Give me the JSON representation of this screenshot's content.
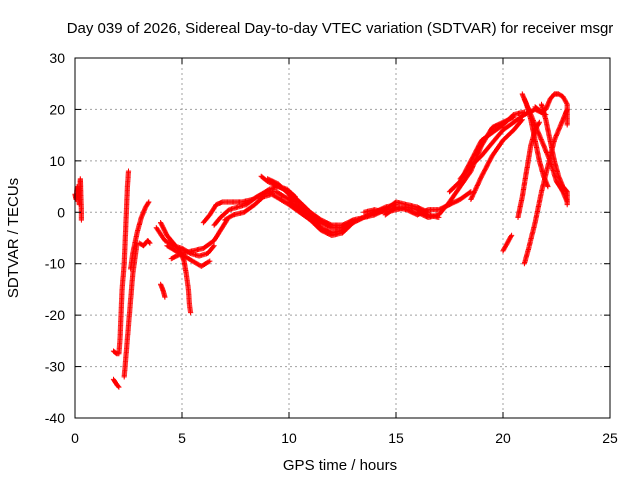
{
  "chart_data": {
    "type": "scatter",
    "title": "Day 039 of 2026, Sidereal Day-to-day VTEC variation (SDTVAR) for receiver msgr",
    "xlabel": "GPS time / hours",
    "ylabel": "SDTVAR / TECUs",
    "xlim": [
      0,
      25
    ],
    "ylim": [
      -40,
      30
    ],
    "xticks": [
      0,
      5,
      10,
      15,
      20,
      25
    ],
    "xtick_labels": [
      "0",
      "5",
      "10",
      "15",
      "20",
      "25"
    ],
    "yticks": [
      -40,
      -30,
      -20,
      -10,
      0,
      10,
      20,
      30
    ],
    "ytick_labels": [
      "-40",
      "-30",
      "-20",
      "-10",
      "0",
      "10",
      "20",
      "30"
    ],
    "grid": true,
    "marker": "plus",
    "color": "#ff0000",
    "tracks": [
      [
        [
          0.0,
          3.5
        ],
        [
          0.05,
          2.5
        ],
        [
          0.1,
          5.0
        ],
        [
          0.15,
          4.0
        ],
        [
          0.2,
          1.5
        ],
        [
          0.25,
          6.5
        ],
        [
          0.3,
          0.0
        ],
        [
          0.3,
          -1.5
        ]
      ],
      [
        [
          1.8,
          -32.5
        ],
        [
          1.95,
          -33.5
        ],
        [
          2.05,
          -34.0
        ]
      ],
      [
        [
          1.8,
          -27.0
        ],
        [
          1.95,
          -27.5
        ],
        [
          2.05,
          -27.5
        ],
        [
          2.1,
          -25.0
        ],
        [
          2.15,
          -20.0
        ],
        [
          2.2,
          -15.0
        ],
        [
          2.3,
          -10.0
        ],
        [
          2.35,
          -5.0
        ],
        [
          2.4,
          0.0
        ],
        [
          2.45,
          5.0
        ],
        [
          2.5,
          8.0
        ]
      ],
      [
        [
          2.3,
          -32.0
        ],
        [
          2.4,
          -27.0
        ],
        [
          2.5,
          -22.0
        ],
        [
          2.6,
          -17.0
        ],
        [
          2.7,
          -12.0
        ],
        [
          2.8,
          -9.0
        ],
        [
          2.9,
          -6.0
        ]
      ],
      [
        [
          2.6,
          -11.0
        ],
        [
          2.7,
          -8.0
        ],
        [
          2.9,
          -4.0
        ],
        [
          3.1,
          -1.0
        ],
        [
          3.3,
          1.0
        ],
        [
          3.45,
          2.0
        ]
      ],
      [
        [
          3.0,
          -6.0
        ],
        [
          3.2,
          -6.5
        ],
        [
          3.4,
          -5.5
        ],
        [
          3.5,
          -6.0
        ]
      ],
      [
        [
          4.0,
          -14.0
        ],
        [
          4.1,
          -15.0
        ],
        [
          4.2,
          -16.5
        ]
      ],
      [
        [
          4.0,
          -2.0
        ],
        [
          4.3,
          -4.5
        ],
        [
          4.6,
          -6.0
        ],
        [
          4.9,
          -7.5
        ],
        [
          5.1,
          -9.5
        ],
        [
          5.2,
          -12.0
        ],
        [
          5.3,
          -15.0
        ],
        [
          5.35,
          -18.0
        ],
        [
          5.4,
          -19.5
        ]
      ],
      [
        [
          3.8,
          -3.0
        ],
        [
          4.2,
          -5.5
        ],
        [
          4.6,
          -6.5
        ],
        [
          5.0,
          -7.0
        ],
        [
          5.4,
          -8.0
        ],
        [
          5.8,
          -8.5
        ],
        [
          6.2,
          -8.0
        ],
        [
          6.5,
          -6.5
        ]
      ],
      [
        [
          4.3,
          -6.5
        ],
        [
          4.7,
          -7.5
        ],
        [
          5.1,
          -8.5
        ],
        [
          5.5,
          -9.5
        ],
        [
          5.9,
          -10.5
        ],
        [
          6.3,
          -9.5
        ]
      ],
      [
        [
          4.5,
          -9.0
        ],
        [
          5.0,
          -8.0
        ],
        [
          5.5,
          -7.5
        ],
        [
          6.0,
          -7.0
        ],
        [
          6.5,
          -5.5
        ],
        [
          6.8,
          -3.5
        ],
        [
          7.1,
          -1.5
        ]
      ],
      [
        [
          6.0,
          -2.0
        ],
        [
          6.3,
          -0.5
        ],
        [
          6.6,
          1.5
        ],
        [
          6.9,
          2.0
        ],
        [
          7.3,
          2.0
        ],
        [
          7.8,
          2.0
        ],
        [
          8.3,
          2.5
        ],
        [
          8.7,
          3.5
        ],
        [
          9.1,
          4.5
        ],
        [
          9.5,
          5.0
        ],
        [
          9.9,
          4.5
        ],
        [
          10.3,
          3.0
        ]
      ],
      [
        [
          6.5,
          -2.5
        ],
        [
          6.8,
          -1.0
        ],
        [
          7.2,
          0.5
        ],
        [
          7.6,
          1.0
        ],
        [
          8.0,
          1.5
        ],
        [
          8.5,
          3.0
        ],
        [
          9.0,
          4.0
        ],
        [
          9.4,
          4.0
        ],
        [
          9.8,
          3.0
        ],
        [
          10.2,
          2.0
        ]
      ],
      [
        [
          7.0,
          -1.5
        ],
        [
          7.4,
          -0.5
        ],
        [
          7.9,
          0.0
        ],
        [
          8.4,
          1.5
        ],
        [
          8.8,
          3.0
        ],
        [
          9.2,
          3.5
        ],
        [
          9.6,
          2.5
        ],
        [
          10.0,
          1.5
        ],
        [
          10.5,
          0.0
        ],
        [
          11.0,
          -1.5
        ],
        [
          11.5,
          -3.5
        ],
        [
          12.0,
          -4.5
        ],
        [
          12.5,
          -4.0
        ],
        [
          13.0,
          -2.0
        ]
      ],
      [
        [
          8.7,
          7.0
        ],
        [
          9.0,
          6.0
        ],
        [
          9.5,
          5.0
        ],
        [
          10.0,
          4.0
        ],
        [
          10.5,
          2.0
        ],
        [
          11.0,
          0.0
        ],
        [
          11.5,
          -1.5
        ],
        [
          12.0,
          -2.5
        ],
        [
          12.5,
          -2.5
        ],
        [
          13.0,
          -1.5
        ]
      ],
      [
        [
          9.0,
          6.5
        ],
        [
          9.5,
          5.5
        ],
        [
          10.0,
          3.5
        ],
        [
          10.5,
          1.0
        ],
        [
          11.0,
          -1.0
        ],
        [
          11.5,
          -3.0
        ],
        [
          12.0,
          -4.0
        ],
        [
          12.5,
          -3.5
        ],
        [
          13.0,
          -2.0
        ],
        [
          13.5,
          -1.0
        ],
        [
          14.0,
          0.0
        ],
        [
          14.5,
          1.0
        ],
        [
          15.0,
          1.5
        ]
      ],
      [
        [
          10.0,
          2.0
        ],
        [
          10.5,
          0.5
        ],
        [
          11.0,
          -0.5
        ],
        [
          11.5,
          -2.0
        ],
        [
          12.0,
          -3.0
        ],
        [
          12.5,
          -3.0
        ],
        [
          13.0,
          -1.5
        ],
        [
          13.5,
          -1.0
        ],
        [
          14.0,
          -0.5
        ],
        [
          14.5,
          0.5
        ],
        [
          15.0,
          2.0
        ],
        [
          15.5,
          1.5
        ],
        [
          16.0,
          1.0
        ],
        [
          16.5,
          0.0
        ]
      ],
      [
        [
          13.5,
          0.0
        ],
        [
          14.0,
          0.5
        ],
        [
          14.5,
          0.0
        ],
        [
          15.0,
          0.5
        ],
        [
          15.5,
          1.0
        ],
        [
          16.0,
          0.5
        ],
        [
          16.5,
          -0.5
        ],
        [
          17.0,
          -1.0
        ]
      ],
      [
        [
          14.5,
          -0.5
        ],
        [
          15.0,
          1.0
        ],
        [
          15.5,
          0.5
        ],
        [
          16.0,
          -0.5
        ],
        [
          16.5,
          0.5
        ],
        [
          17.0,
          0.5
        ],
        [
          17.5,
          1.5
        ],
        [
          18.0,
          2.5
        ],
        [
          18.5,
          4.0
        ]
      ],
      [
        [
          16.0,
          0.0
        ],
        [
          16.5,
          -1.0
        ],
        [
          17.0,
          -0.5
        ],
        [
          17.5,
          2.0
        ],
        [
          18.0,
          5.0
        ],
        [
          18.5,
          8.0
        ],
        [
          19.0,
          13.0
        ],
        [
          19.5,
          16.5
        ],
        [
          20.0,
          17.5
        ],
        [
          20.5,
          18.5
        ]
      ],
      [
        [
          17.5,
          4.0
        ],
        [
          18.0,
          6.0
        ],
        [
          18.5,
          10.0
        ],
        [
          19.0,
          14.0
        ],
        [
          19.5,
          15.5
        ],
        [
          20.0,
          17.0
        ],
        [
          20.5,
          19.0
        ],
        [
          21.0,
          19.5
        ]
      ],
      [
        [
          18.0,
          6.5
        ],
        [
          18.5,
          9.0
        ],
        [
          19.0,
          11.0
        ],
        [
          19.5,
          13.5
        ],
        [
          20.0,
          16.0
        ],
        [
          20.5,
          17.5
        ],
        [
          21.0,
          19.0
        ],
        [
          21.5,
          20.0
        ],
        [
          22.0,
          19.0
        ]
      ],
      [
        [
          18.5,
          2.5
        ],
        [
          19.0,
          7.0
        ],
        [
          19.5,
          11.0
        ],
        [
          20.0,
          14.0
        ],
        [
          20.5,
          16.0
        ],
        [
          20.9,
          18.0
        ]
      ],
      [
        [
          20.0,
          -7.5
        ],
        [
          20.2,
          -6.0
        ],
        [
          20.4,
          -4.5
        ]
      ],
      [
        [
          20.7,
          -1.0
        ],
        [
          20.9,
          3.0
        ],
        [
          21.1,
          8.0
        ],
        [
          21.3,
          13.0
        ],
        [
          21.5,
          16.0
        ],
        [
          21.7,
          17.5
        ]
      ],
      [
        [
          21.0,
          -10.0
        ],
        [
          21.2,
          -7.0
        ],
        [
          21.5,
          -2.0
        ],
        [
          21.8,
          4.0
        ],
        [
          22.1,
          9.0
        ],
        [
          22.4,
          14.0
        ],
        [
          22.7,
          17.0
        ],
        [
          22.9,
          19.0
        ],
        [
          23.0,
          20.0
        ]
      ],
      [
        [
          20.9,
          23.0
        ],
        [
          21.1,
          21.0
        ],
        [
          21.3,
          18.0
        ],
        [
          21.5,
          14.0
        ],
        [
          21.7,
          10.0
        ],
        [
          21.9,
          7.0
        ],
        [
          22.1,
          5.0
        ]
      ],
      [
        [
          21.0,
          22.0
        ],
        [
          21.3,
          19.0
        ],
        [
          21.6,
          16.0
        ],
        [
          21.9,
          13.0
        ],
        [
          22.2,
          10.0
        ],
        [
          22.5,
          6.0
        ],
        [
          22.8,
          4.0
        ],
        [
          23.0,
          2.0
        ]
      ],
      [
        [
          21.5,
          20.5
        ],
        [
          21.8,
          19.5
        ],
        [
          22.0,
          20.0
        ],
        [
          22.2,
          22.0
        ],
        [
          22.4,
          23.0
        ],
        [
          22.6,
          23.0
        ],
        [
          22.8,
          22.5
        ],
        [
          23.0,
          21.0
        ],
        [
          23.0,
          17.0
        ]
      ],
      [
        [
          21.8,
          21.0
        ],
        [
          22.0,
          18.0
        ],
        [
          22.2,
          14.0
        ],
        [
          22.4,
          10.0
        ],
        [
          22.6,
          7.0
        ],
        [
          22.8,
          5.0
        ],
        [
          23.0,
          4.0
        ],
        [
          23.0,
          1.5
        ]
      ]
    ]
  }
}
